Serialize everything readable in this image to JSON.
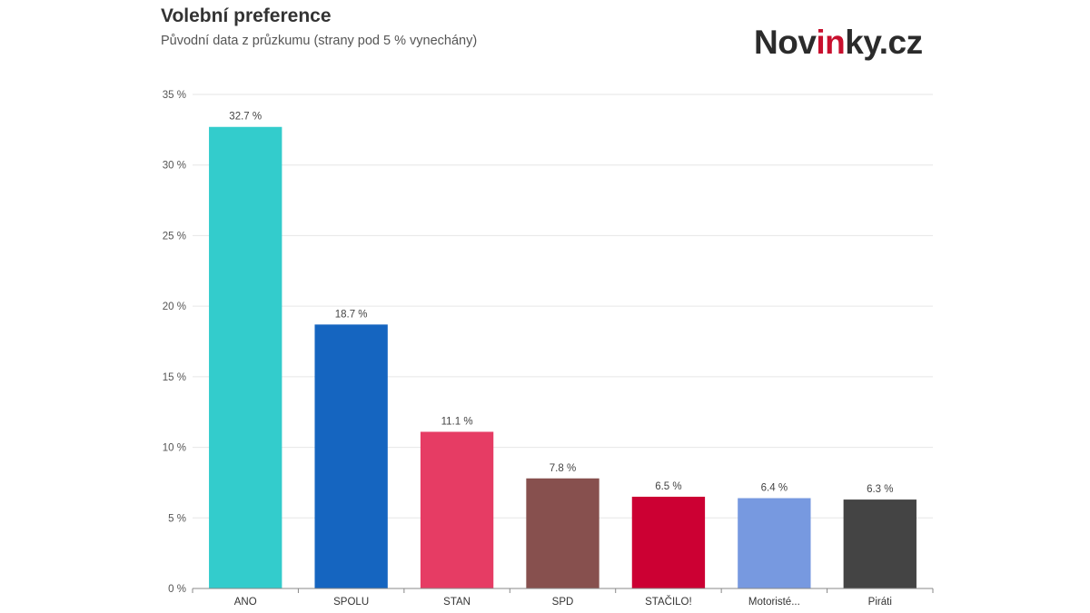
{
  "title": "Volební preference",
  "subtitle": "Původní data z průzkumu (strany pod 5 % vynechány)",
  "logo": {
    "part1": "Nov",
    "part2": "in",
    "part3": "ky.cz",
    "accent_color": "#c8102e",
    "text_color": "#2b2b2b"
  },
  "chart_data": {
    "type": "bar",
    "title": "Volební preference",
    "subtitle": "Původní data z průzkumu (strany pod 5 % vynechány)",
    "categories": [
      "ANO",
      "SPOLU",
      "STAN",
      "SPD",
      "STAČILO!",
      "Motoristé...",
      "Piráti"
    ],
    "values": [
      32.7,
      18.7,
      11.1,
      7.8,
      6.5,
      6.4,
      6.3
    ],
    "value_labels": [
      "32.7 %",
      "18.7 %",
      "11.1 %",
      "7.8 %",
      "6.5 %",
      "6.4 %",
      "6.3 %"
    ],
    "colors": [
      "#33cccc",
      "#1565c0",
      "#e63c64",
      "#87504e",
      "#cc0033",
      "#7799e0",
      "#444444"
    ],
    "ylim": [
      0,
      35
    ],
    "yticks": [
      0,
      5,
      10,
      15,
      20,
      25,
      30,
      35
    ],
    "ytick_labels": [
      "0 %",
      "5 %",
      "10 %",
      "15 %",
      "20 %",
      "25 %",
      "30 %",
      "35 %"
    ],
    "xlabel": "",
    "ylabel": "",
    "grid": true,
    "legend": "none"
  }
}
